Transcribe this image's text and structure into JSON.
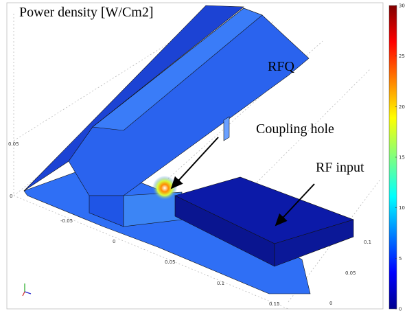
{
  "title": "Power density [W/Cm2]",
  "annotations": [
    "RFQ",
    "Coupling hole",
    "RF input"
  ],
  "colorbar": {
    "range": [
      0,
      30
    ],
    "ticks": [
      0,
      5,
      10,
      15,
      20,
      25,
      30
    ]
  },
  "axes": {
    "z_ticks": [
      "0.05",
      "0"
    ],
    "x_ticks": [
      "-0.05",
      "0",
      "0.05",
      "0.1",
      "0.15"
    ],
    "y_ticks": [
      "0.1",
      "0.05",
      "0"
    ]
  }
}
